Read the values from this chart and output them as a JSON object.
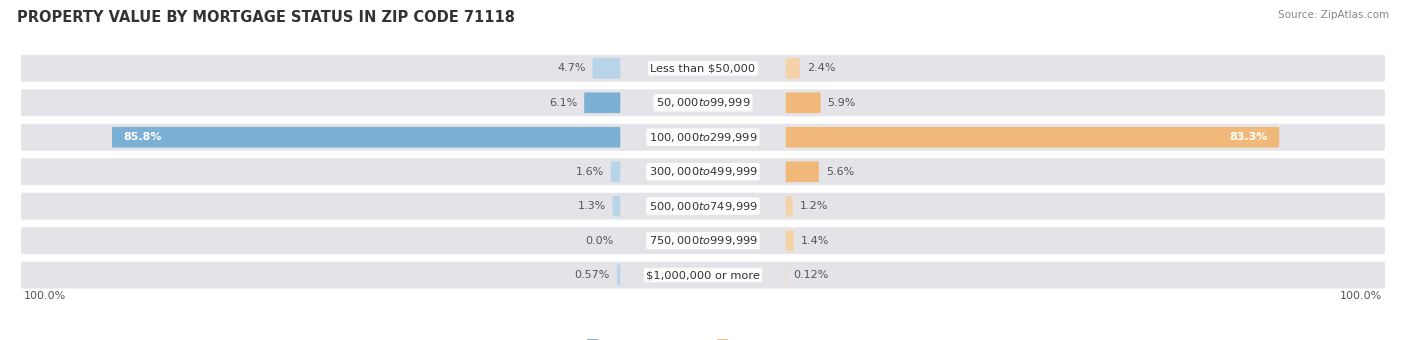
{
  "title": "PROPERTY VALUE BY MORTGAGE STATUS IN ZIP CODE 71118",
  "source": "Source: ZipAtlas.com",
  "categories": [
    "Less than $50,000",
    "$50,000 to $99,999",
    "$100,000 to $299,999",
    "$300,000 to $499,999",
    "$500,000 to $749,999",
    "$750,000 to $999,999",
    "$1,000,000 or more"
  ],
  "without_mortgage": [
    4.7,
    6.1,
    85.8,
    1.6,
    1.3,
    0.0,
    0.57
  ],
  "with_mortgage": [
    2.4,
    5.9,
    83.3,
    5.6,
    1.2,
    1.4,
    0.12
  ],
  "without_mortgage_labels": [
    "4.7%",
    "6.1%",
    "85.8%",
    "1.6%",
    "1.3%",
    "0.0%",
    "0.57%"
  ],
  "with_mortgage_labels": [
    "2.4%",
    "5.9%",
    "83.3%",
    "5.6%",
    "1.2%",
    "1.4%",
    "0.12%"
  ],
  "color_without": "#7bafd4",
  "color_with": "#f0b97a",
  "color_without_light": "#b8d4e8",
  "color_with_light": "#f5d3a8",
  "bar_row_bg": "#e4e4e8",
  "fig_bg": "#ffffff",
  "title_fontsize": 10.5,
  "label_fontsize": 8.0,
  "category_fontsize": 8.2,
  "source_fontsize": 7.5
}
